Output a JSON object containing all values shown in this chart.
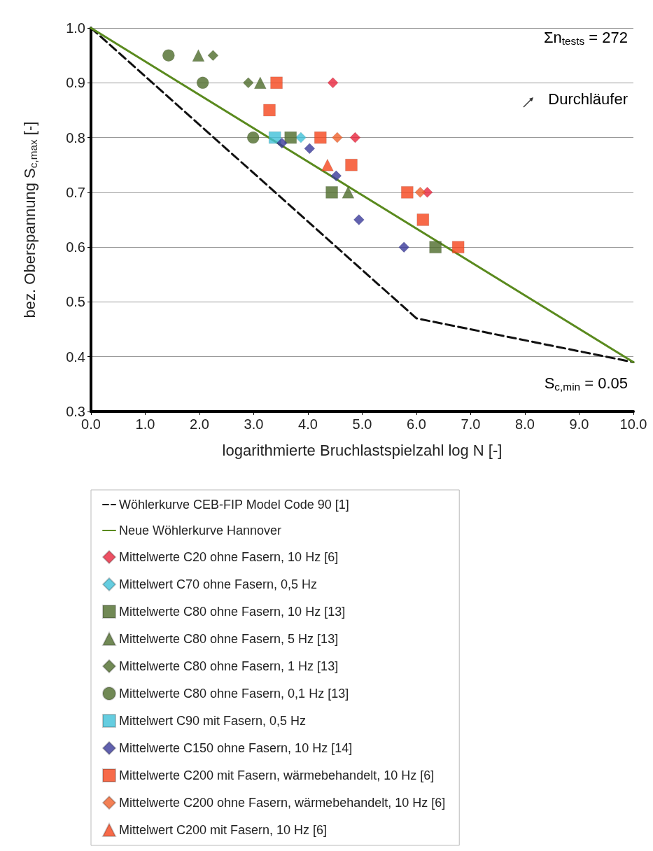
{
  "chart_data": {
    "type": "scatter",
    "xlabel": "logarithmierte Bruchlastspielzahl log N [-]",
    "ylabel": "bez. Oberspannung S$_{c,max}$ [-]",
    "xlim": [
      0,
      10
    ],
    "ylim": [
      0.3,
      1.0
    ],
    "xticks": [
      {
        "value": 0,
        "label": "0.0"
      },
      {
        "value": 1,
        "label": "1.0"
      },
      {
        "value": 2,
        "label": "2.0"
      },
      {
        "value": 3,
        "label": "3.0"
      },
      {
        "value": 4,
        "label": "4.0"
      },
      {
        "value": 5,
        "label": "5.0"
      },
      {
        "value": 6,
        "label": "6.0"
      },
      {
        "value": 7,
        "label": "7.0"
      },
      {
        "value": 8,
        "label": "8.0"
      },
      {
        "value": 9,
        "label": "9.0"
      },
      {
        "value": 10,
        "label": "10.0"
      }
    ],
    "yticks": [
      0.3,
      0.4,
      0.5,
      0.6,
      0.7,
      0.8,
      0.9,
      {
        "value": 1.0,
        "label": "1.0"
      }
    ],
    "grid": "y",
    "legend": "bottom",
    "annotations": [
      "Σn$_{tests}$ = 272",
      "Durchläufer",
      "S$_{c,min}$ = 0.05"
    ],
    "series": [
      {
        "name": "Wöhlerkurve CEB-FIP Model Code 90 [1]",
        "type": "line",
        "line_style": "dashed",
        "marker": "none",
        "color": "#111111",
        "x": [
          0,
          6,
          10
        ],
        "values": [
          1.0,
          0.47,
          0.39
        ]
      },
      {
        "name": "Neue Wöhlerkurve Hannover",
        "type": "line",
        "line_style": "solid",
        "marker": "none",
        "color": "#5a8a1e",
        "x": [
          0,
          10
        ],
        "values": [
          1.0,
          0.39
        ]
      },
      {
        "name": "Mittelwerte C20 ohne Fasern, 10 Hz [6]",
        "marker": "diamond",
        "color": "#e8243c",
        "x": [
          4.46,
          4.87,
          6.2
        ],
        "values": [
          0.9,
          0.8,
          0.7
        ]
      },
      {
        "name": "Mittelwert C70 ohne Fasern, 0,5 Hz",
        "marker": "diamond",
        "color": "#3fc1d8",
        "x": [
          3.87
        ],
        "values": [
          0.8
        ]
      },
      {
        "name": "Mittelwerte C80 ohne Fasern, 10 Hz [13]",
        "marker": "square",
        "color": "#4e6b2a",
        "x": [
          3.68,
          4.44,
          6.35
        ],
        "values": [
          0.8,
          0.7,
          0.6
        ]
      },
      {
        "name": "Mittelwerte C80 ohne Fasern, 5 Hz [13]",
        "marker": "triangle",
        "color": "#4e6b2a",
        "x": [
          1.98,
          3.12,
          4.74
        ],
        "values": [
          0.95,
          0.9,
          0.7
        ]
      },
      {
        "name": "Mittelwerte C80 ohne Fasern, 1 Hz [13]",
        "marker": "diamond",
        "color": "#4e6b2a",
        "x": [
          2.25,
          2.9
        ],
        "values": [
          0.95,
          0.9
        ]
      },
      {
        "name": "Mittelwerte C80 ohne Fasern, 0,1 Hz [13]",
        "marker": "circle",
        "color": "#4e6b2a",
        "x": [
          1.43,
          2.06,
          2.99
        ],
        "values": [
          0.95,
          0.9,
          0.8
        ]
      },
      {
        "name": "Mittelwert C90 mit Fasern, 0,5 Hz",
        "marker": "square",
        "color": "#3fc1d8",
        "x": [
          3.39
        ],
        "values": [
          0.8
        ]
      },
      {
        "name": "Mittelwerte C150 ohne Fasern, 10 Hz [14]",
        "marker": "diamond",
        "color": "#3a3a9a",
        "x": [
          3.52,
          4.03,
          4.52,
          4.94,
          5.77
        ],
        "values": [
          0.79,
          0.78,
          0.73,
          0.65,
          0.6
        ]
      },
      {
        "name": "Mittelwerte C200 mit Fasern, wärmebehandelt, 10 Hz [6]",
        "marker": "square",
        "color": "#f5451c",
        "x": [
          3.42,
          3.29,
          4.23,
          4.8,
          5.83,
          6.12,
          6.77
        ],
        "values": [
          0.9,
          0.85,
          0.8,
          0.75,
          0.7,
          0.65,
          0.6
        ]
      },
      {
        "name": "Mittelwerte C200 ohne Fasern, wärmebehandelt, 10 Hz [6]",
        "marker": "diamond",
        "color": "#f0602a",
        "x": [
          4.54,
          6.07
        ],
        "values": [
          0.8,
          0.7
        ]
      },
      {
        "name": "Mittelwert C200 mit Fasern, 10 Hz [6]",
        "marker": "triangle",
        "color": "#f5451c",
        "x": [
          4.36
        ],
        "values": [
          0.75
        ]
      }
    ]
  }
}
